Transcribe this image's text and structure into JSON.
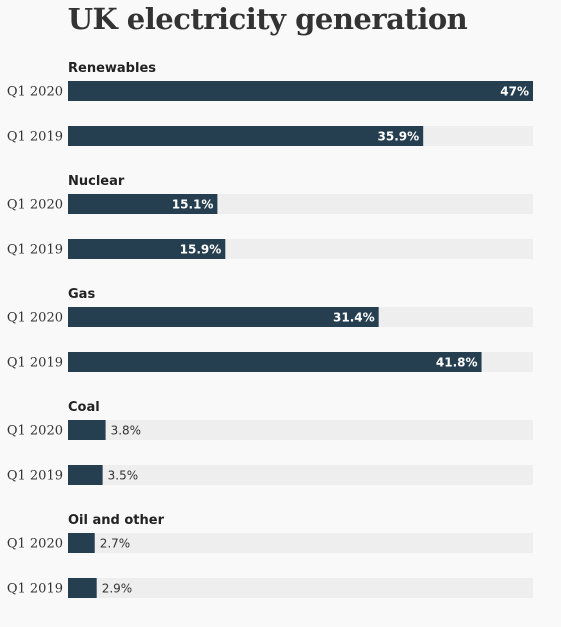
{
  "chart_data": {
    "type": "bar",
    "orientation": "horizontal",
    "title": "UK electricity generation",
    "unit": "%",
    "xlim": [
      0,
      47
    ],
    "grid": false,
    "groups": [
      {
        "name": "Renewables",
        "rows": [
          {
            "label": "Q1 2020",
            "value": 47,
            "value_label": "47%"
          },
          {
            "label": "Q1 2019",
            "value": 35.9,
            "value_label": "35.9%"
          }
        ]
      },
      {
        "name": "Nuclear",
        "rows": [
          {
            "label": "Q1 2020",
            "value": 15.1,
            "value_label": "15.1%"
          },
          {
            "label": "Q1 2019",
            "value": 15.9,
            "value_label": "15.9%"
          }
        ]
      },
      {
        "name": "Gas",
        "rows": [
          {
            "label": "Q1 2020",
            "value": 31.4,
            "value_label": "31.4%"
          },
          {
            "label": "Q1 2019",
            "value": 41.8,
            "value_label": "41.8%"
          }
        ]
      },
      {
        "name": "Coal",
        "rows": [
          {
            "label": "Q1 2020",
            "value": 3.8,
            "value_label": "3.8%"
          },
          {
            "label": "Q1 2019",
            "value": 3.5,
            "value_label": "3.5%"
          }
        ]
      },
      {
        "name": "Oil and other",
        "rows": [
          {
            "label": "Q1 2020",
            "value": 2.7,
            "value_label": "2.7%"
          },
          {
            "label": "Q1 2019",
            "value": 2.9,
            "value_label": "2.9%"
          }
        ]
      }
    ]
  },
  "colors": {
    "bar": "#253f50",
    "track": "#eeeeee",
    "background": "#f9f9f9"
  }
}
